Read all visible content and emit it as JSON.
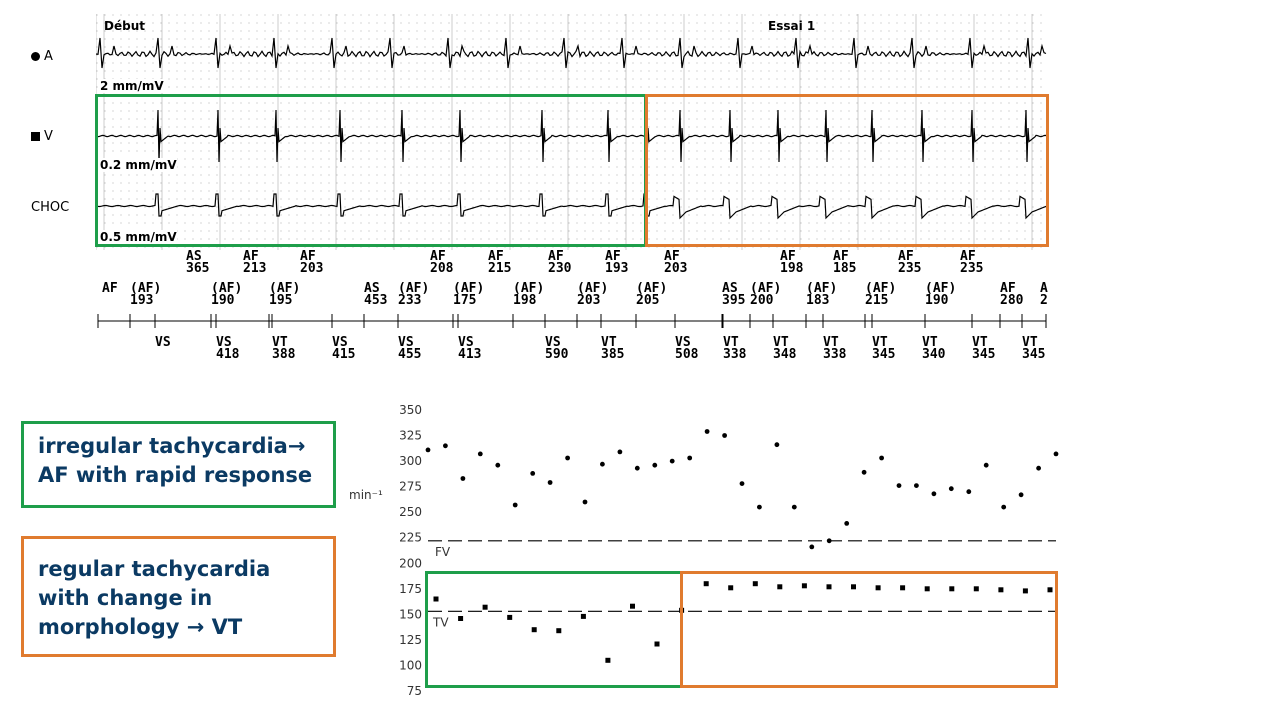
{
  "ecg": {
    "marker_start": "Début",
    "marker_trial": "Essai 1",
    "channels": [
      {
        "label": "A",
        "symbol": "circle",
        "scale": "2 mm/mV"
      },
      {
        "label": "V",
        "symbol": "square",
        "scale": "0.2 mm/mV"
      },
      {
        "label": "CHOC",
        "symbol": "",
        "scale": "0.5 mm/mV"
      }
    ]
  },
  "annotations": {
    "upper_row": [
      {
        "code": "AS",
        "value": "365"
      },
      {
        "code": "AF",
        "value": "213"
      },
      {
        "code": "AF",
        "value": "203"
      },
      {
        "code": "AF",
        "value": "208"
      },
      {
        "code": "AF",
        "value": "215"
      },
      {
        "code": "AF",
        "value": "230"
      },
      {
        "code": "AF",
        "value": "193"
      },
      {
        "code": "AF",
        "value": "203"
      },
      {
        "code": "AF",
        "value": "198"
      },
      {
        "code": "AF",
        "value": "185"
      },
      {
        "code": "AF",
        "value": "235"
      },
      {
        "code": "AF",
        "value": "235"
      }
    ],
    "middle_row": [
      {
        "code": "AF",
        "value": ""
      },
      {
        "code": "(AF)",
        "value": "193"
      },
      {
        "code": "(AF)",
        "value": "190"
      },
      {
        "code": "(AF)",
        "value": "195"
      },
      {
        "code": "AS",
        "value": "453"
      },
      {
        "code": "(AF)",
        "value": "233"
      },
      {
        "code": "(AF)",
        "value": "175"
      },
      {
        "code": "(AF)",
        "value": "198"
      },
      {
        "code": "(AF)",
        "value": "203"
      },
      {
        "code": "(AF)",
        "value": "205"
      },
      {
        "code": "AS",
        "value": "395"
      },
      {
        "code": "(AF)",
        "value": "200"
      },
      {
        "code": "(AF)",
        "value": "183"
      },
      {
        "code": "(AF)",
        "value": "215"
      },
      {
        "code": "(AF)",
        "value": "190"
      },
      {
        "code": "AF",
        "value": "280"
      },
      {
        "code": "A",
        "value": "2"
      }
    ],
    "lower_row": [
      {
        "code": "VS",
        "value": ""
      },
      {
        "code": "VS",
        "value": "418"
      },
      {
        "code": "VT",
        "value": "388"
      },
      {
        "code": "VS",
        "value": "415"
      },
      {
        "code": "VS",
        "value": "455"
      },
      {
        "code": "VS",
        "value": "413"
      },
      {
        "code": "VS",
        "value": "590"
      },
      {
        "code": "VT",
        "value": "385"
      },
      {
        "code": "VS",
        "value": "508"
      },
      {
        "code": "VT",
        "value": "338"
      },
      {
        "code": "VT",
        "value": "348"
      },
      {
        "code": "VT",
        "value": "338"
      },
      {
        "code": "VT",
        "value": "345"
      },
      {
        "code": "VT",
        "value": "340"
      },
      {
        "code": "VT",
        "value": "345"
      },
      {
        "code": "VT",
        "value": "345"
      }
    ]
  },
  "plot": {
    "ylabel": "min⁻¹",
    "yticks": [
      75,
      100,
      125,
      150,
      175,
      200,
      225,
      250,
      275,
      300,
      325,
      350
    ],
    "ylim": [
      75,
      350
    ],
    "fv_label": "FV",
    "fv_value": 222,
    "tv_label": "TV",
    "tv_value": 153,
    "atrial_points": [
      311,
      315,
      283,
      307,
      296,
      257,
      288,
      279,
      303,
      260,
      297,
      309,
      293,
      296,
      300,
      303,
      329,
      325,
      278,
      255,
      316,
      255,
      216,
      222,
      239,
      289,
      303,
      276,
      276,
      268,
      273,
      270,
      296,
      255,
      267,
      293,
      307
    ],
    "ventricular_points": [
      165,
      146,
      157,
      147,
      135,
      134,
      148,
      105,
      158,
      121,
      154,
      180,
      176,
      180,
      177,
      178,
      177,
      177,
      176,
      176,
      175,
      175,
      175,
      174,
      173,
      174
    ]
  },
  "notes": {
    "green": {
      "line1": "irregular tachycardia→",
      "line2": "AF with rapid response",
      "color": "#1e9e4a"
    },
    "orange": {
      "line1": "regular tachycardia",
      "line2": "with change in",
      "line3": "morphology → VT",
      "color": "#e07b2f"
    }
  }
}
